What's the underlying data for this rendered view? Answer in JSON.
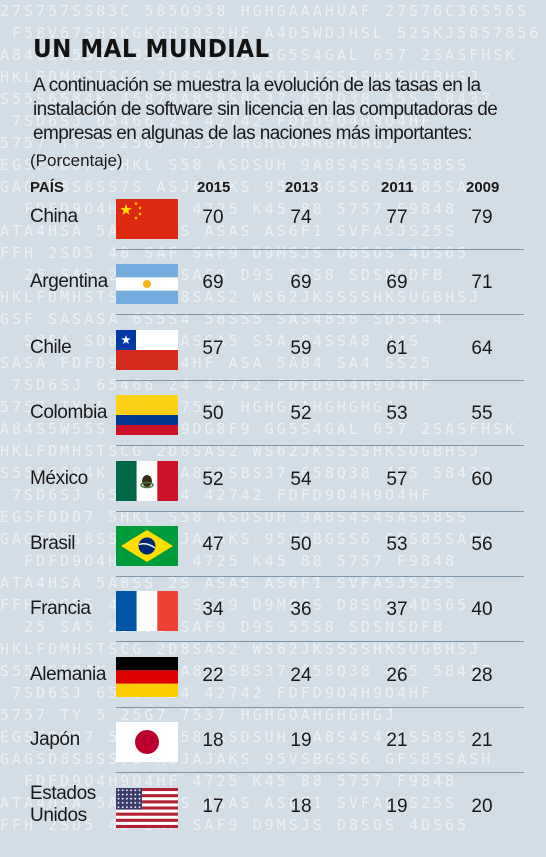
{
  "title": "UN MAL MUNDIAL",
  "subtitle": "A continuación se muestra la evolución de las tasas en la instalación de software sin licencia en las computadoras de empresas en algunas de las naciones más importantes:",
  "unit_label": "(Porcentaje)",
  "headers": {
    "country": "PAÍS",
    "years": [
      "2015",
      "2013",
      "2011",
      "2009"
    ]
  },
  "colors": {
    "background": "#d3dde6",
    "divider": "#7f95a8",
    "text": "#1a1a1a"
  },
  "chart_data": {
    "type": "table",
    "columns": [
      "2015",
      "2013",
      "2011",
      "2009"
    ],
    "rows": [
      {
        "country": "China",
        "flag": "china-flag-icon",
        "values": [
          "70",
          "74",
          "77",
          "79"
        ]
      },
      {
        "country": "Argentina",
        "flag": "argentina-flag-icon",
        "values": [
          "69",
          "69",
          "69",
          "71"
        ]
      },
      {
        "country": "Chile",
        "flag": "chile-flag-icon",
        "values": [
          "57",
          "59",
          "61",
          "64"
        ]
      },
      {
        "country": "Colombia",
        "flag": "colombia-flag-icon",
        "values": [
          "50",
          "52",
          "53",
          "55"
        ]
      },
      {
        "country": "México",
        "flag": "mexico-flag-icon",
        "values": [
          "52",
          "54",
          "57",
          "60"
        ]
      },
      {
        "country": "Brasil",
        "flag": "brazil-flag-icon",
        "values": [
          "47",
          "50",
          "53",
          "56"
        ]
      },
      {
        "country": "Francia",
        "flag": "france-flag-icon",
        "values": [
          "34",
          "36",
          "37",
          "40"
        ]
      },
      {
        "country": "Alemania",
        "flag": "germany-flag-icon",
        "values": [
          "22",
          "24",
          "26",
          "28"
        ]
      },
      {
        "country": "Japón",
        "flag": "japan-flag-icon",
        "values": [
          "18",
          "19",
          "21",
          "21"
        ]
      },
      {
        "country": "Estados Unidos",
        "flag": "usa-flag-icon",
        "values": [
          "17",
          "18",
          "19",
          "20"
        ]
      }
    ]
  }
}
